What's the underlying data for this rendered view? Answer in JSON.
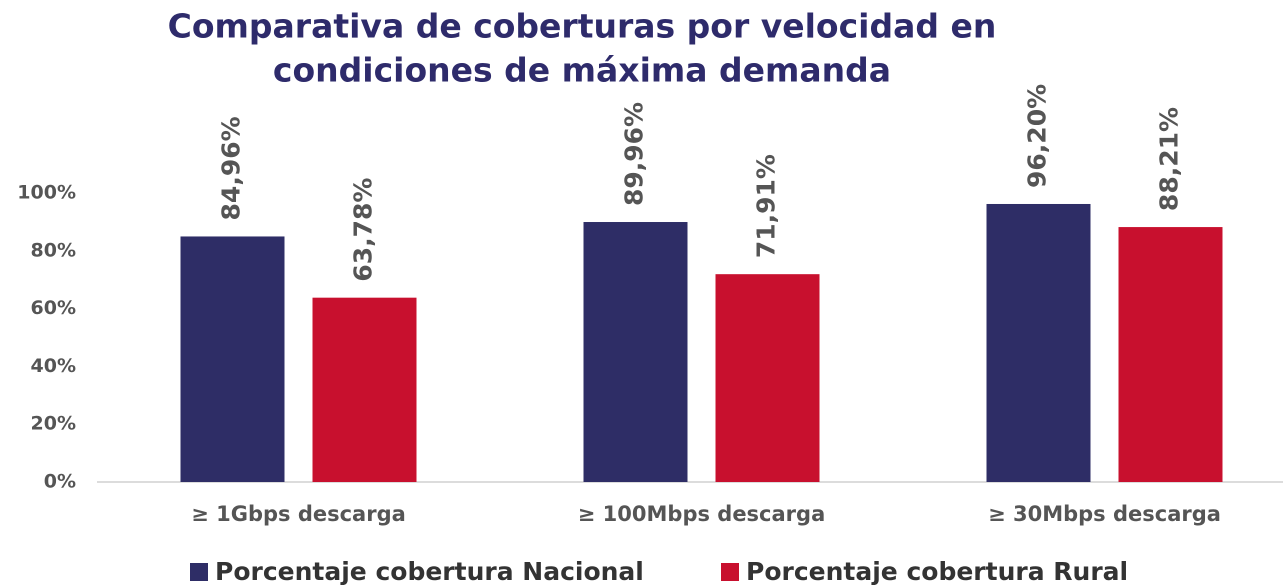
{
  "chart_data": {
    "type": "bar",
    "title": [
      "Comparativa de coberturas por velocidad en",
      "condiciones de máxima demanda"
    ],
    "categories": [
      "≥ 1Gbps descarga",
      "≥ 100Mbps descarga",
      "≥ 30Mbps descarga"
    ],
    "series": [
      {
        "name": "Porcentaje cobertura Nacional",
        "color": "#2e2d66",
        "values": [
          84.96,
          89.96,
          96.2
        ],
        "value_labels": [
          "84,96%",
          "89,96%",
          "96,20%"
        ]
      },
      {
        "name": "Porcentaje cobertura Rural",
        "color": "#c8102e",
        "values": [
          63.78,
          71.91,
          88.21
        ],
        "value_labels": [
          "63,78%",
          "71,91%",
          "88,21%"
        ]
      }
    ],
    "ylim": [
      0,
      100
    ],
    "yticks": [
      {
        "value": 0,
        "label": "0%"
      },
      {
        "value": 20,
        "label": "20%"
      },
      {
        "value": 40,
        "label": "40%"
      },
      {
        "value": 60,
        "label": "60%"
      },
      {
        "value": 80,
        "label": "80%"
      },
      {
        "value": 100,
        "label": "100%"
      }
    ],
    "grid": false,
    "legend": "bottom"
  }
}
